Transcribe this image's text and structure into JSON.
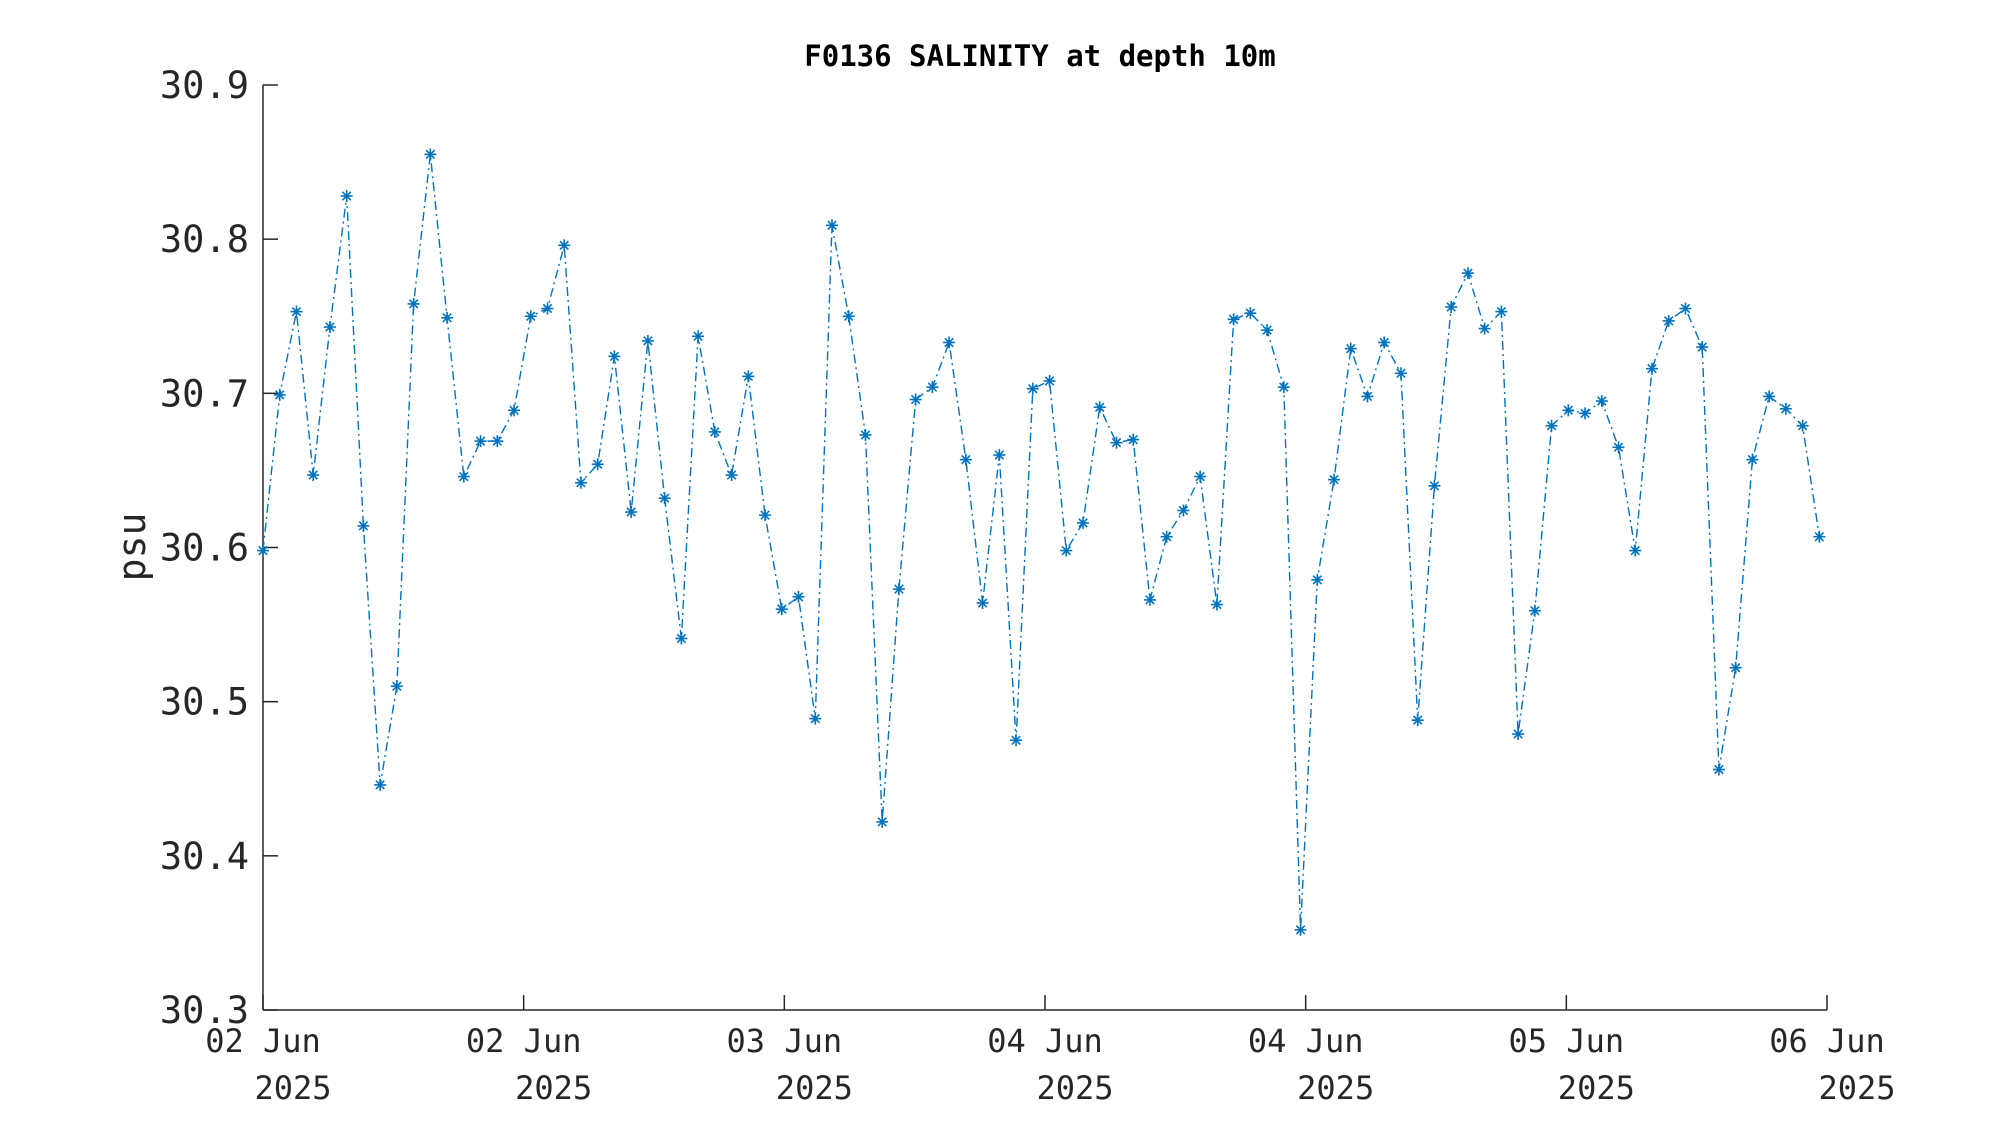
{
  "chart_data": {
    "type": "line",
    "title": "F0136 SALINITY at depth 10m",
    "xlabel": "",
    "ylabel": "psu",
    "ylim": [
      30.3,
      30.9
    ],
    "yticks": [
      30.3,
      30.4,
      30.5,
      30.6,
      30.7,
      30.8,
      30.9
    ],
    "ytick_labels": [
      "30.3",
      "30.4",
      "30.5",
      "30.6",
      "30.7",
      "30.8",
      "30.9"
    ],
    "xlim": [
      0,
      100
    ],
    "xticks": [
      0,
      16.667,
      33.333,
      50,
      66.667,
      83.333,
      100
    ],
    "xtick_labels": [
      [
        "02 Jun",
        "2025"
      ],
      [
        "02 Jun",
        "2025"
      ],
      [
        "03 Jun",
        "2025"
      ],
      [
        "04 Jun",
        "2025"
      ],
      [
        "04 Jun",
        "2025"
      ],
      [
        "05 Jun",
        "2025"
      ],
      [
        "06 Jun",
        "2025"
      ]
    ],
    "grid": false,
    "color": "#0072BD",
    "line_style": "dash-dot",
    "marker": "asterisk",
    "series": [
      {
        "x": [
          0,
          1.07,
          2.14,
          3.21,
          4.28,
          5.35,
          6.42,
          7.49,
          8.56,
          9.63,
          10.7,
          11.77,
          12.84,
          13.91,
          14.98,
          16.05,
          17.12,
          18.19,
          19.26,
          20.33,
          21.4,
          22.47,
          23.54,
          24.61,
          25.68,
          26.75,
          27.82,
          28.89,
          29.96,
          31.03,
          32.1,
          33.17,
          34.24,
          35.31,
          36.38,
          37.45,
          38.52,
          39.59,
          40.66,
          41.73,
          42.8,
          43.87,
          44.94,
          46.01,
          47.08,
          48.15,
          49.22,
          50.29,
          51.36,
          52.43,
          53.5,
          54.57,
          55.64,
          56.71,
          57.78,
          58.85,
          59.92,
          60.99,
          62.06,
          63.13,
          64.2,
          65.27,
          66.34,
          67.41,
          68.48,
          69.55,
          70.62,
          71.69,
          72.76,
          73.83,
          74.9,
          75.97,
          77.04,
          78.11,
          79.18,
          80.25,
          81.32,
          82.39,
          83.46,
          84.53,
          85.6,
          86.67,
          87.74,
          88.81,
          89.88,
          90.95,
          92.02,
          93.09,
          94.16,
          95.23,
          96.3,
          97.37,
          98.44,
          99.51
        ],
        "y": [
          30.598,
          30.699,
          30.753,
          30.647,
          30.743,
          30.828,
          30.614,
          30.446,
          30.51,
          30.758,
          30.855,
          30.749,
          30.646,
          30.669,
          30.669,
          30.689,
          30.75,
          30.755,
          30.796,
          30.642,
          30.654,
          30.724,
          30.623,
          30.734,
          30.632,
          30.541,
          30.737,
          30.675,
          30.647,
          30.711,
          30.621,
          30.56,
          30.568,
          30.489,
          30.809,
          30.75,
          30.673,
          30.422,
          30.573,
          30.696,
          30.704,
          30.733,
          30.657,
          30.564,
          30.66,
          30.475,
          30.703,
          30.708,
          30.598,
          30.616,
          30.691,
          30.668,
          30.67,
          30.566,
          30.607,
          30.624,
          30.646,
          30.563,
          30.748,
          30.752,
          30.741,
          30.704,
          30.352,
          30.579,
          30.644,
          30.729,
          30.698,
          30.733,
          30.713,
          30.488,
          30.64,
          30.756,
          30.778,
          30.742,
          30.753,
          30.479,
          30.559,
          30.679,
          30.689,
          30.687,
          30.695,
          30.665,
          30.598,
          30.716,
          30.747,
          30.755,
          30.73,
          30.456,
          30.522,
          30.657,
          30.698,
          30.69,
          30.679,
          30.607
        ]
      }
    ]
  }
}
